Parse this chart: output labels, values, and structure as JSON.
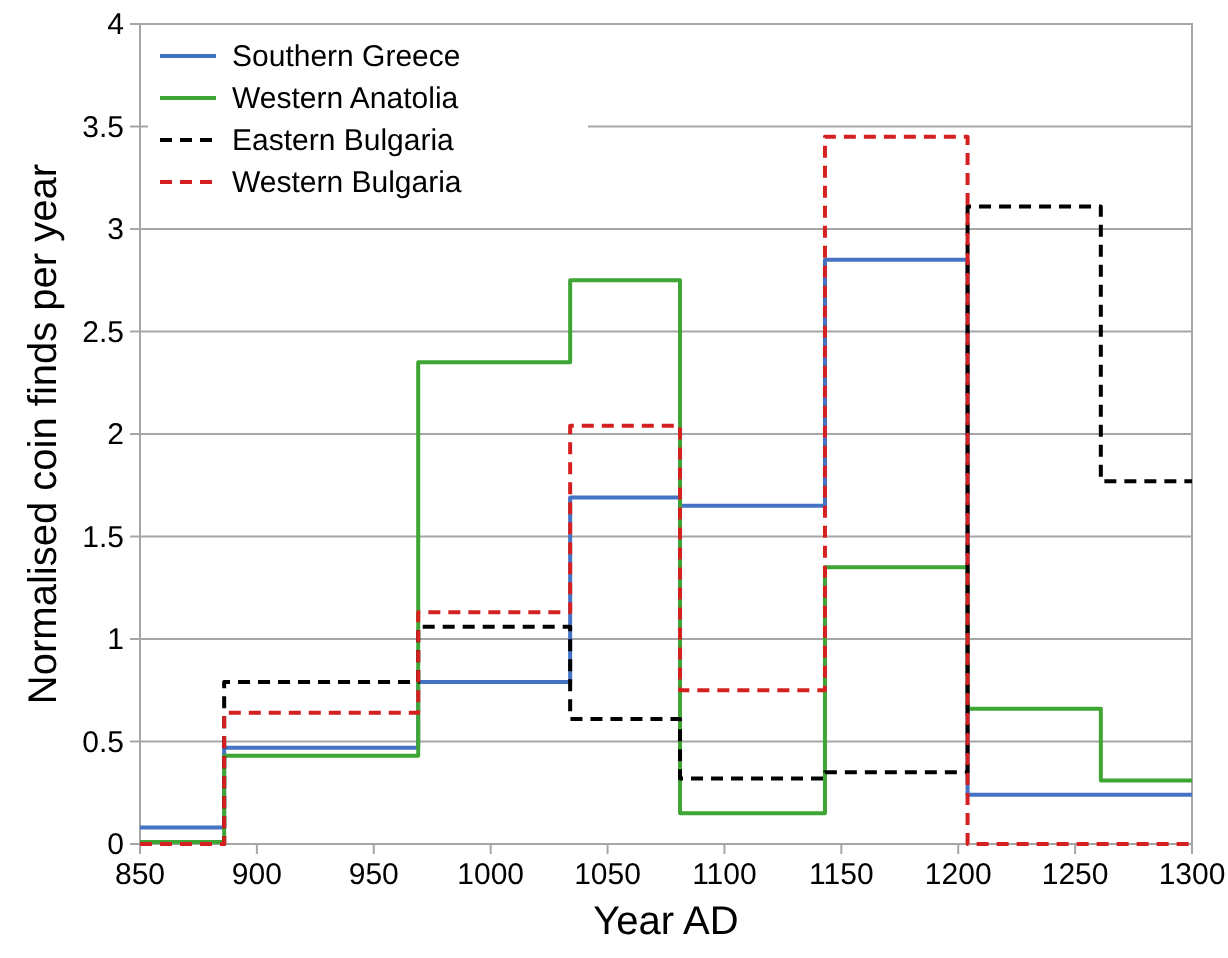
{
  "chart_data": {
    "type": "step",
    "xlabel": "Year AD",
    "ylabel": "Normalised coin finds per year",
    "x": [
      850,
      886,
      969,
      1034,
      1081,
      1143,
      1204,
      1261,
      1300
    ],
    "series": [
      {
        "name": "Southern Greece",
        "color": "#4472c4",
        "line_style": "solid",
        "values": [
          0.08,
          0.47,
          0.79,
          1.69,
          1.65,
          2.85,
          0.24,
          0.24,
          0.24
        ]
      },
      {
        "name": "Western Anatolia",
        "color": "#3fa535",
        "line_style": "solid",
        "values": [
          0.01,
          0.43,
          2.35,
          2.75,
          0.15,
          1.35,
          0.66,
          0.31,
          0.31
        ]
      },
      {
        "name": "Eastern Bulgaria",
        "color": "#000000",
        "line_style": "dashed",
        "values": [
          0,
          0.79,
          1.06,
          0.61,
          0.32,
          0.35,
          3.11,
          1.77,
          1.77
        ]
      },
      {
        "name": "Western Bulgaria",
        "color": "#d42020",
        "line_style": "dashed",
        "values": [
          0,
          0.64,
          1.13,
          2.04,
          0.75,
          3.45,
          0,
          0,
          0
        ]
      }
    ],
    "xlim": [
      850,
      1300
    ],
    "xticks": [
      850,
      900,
      950,
      1000,
      1050,
      1100,
      1150,
      1200,
      1250,
      1300
    ],
    "ylim": [
      0,
      4
    ],
    "yticks": [
      0,
      0.5,
      1,
      1.5,
      2,
      2.5,
      3,
      3.5,
      4
    ],
    "grid": "y",
    "legend": "top left"
  }
}
